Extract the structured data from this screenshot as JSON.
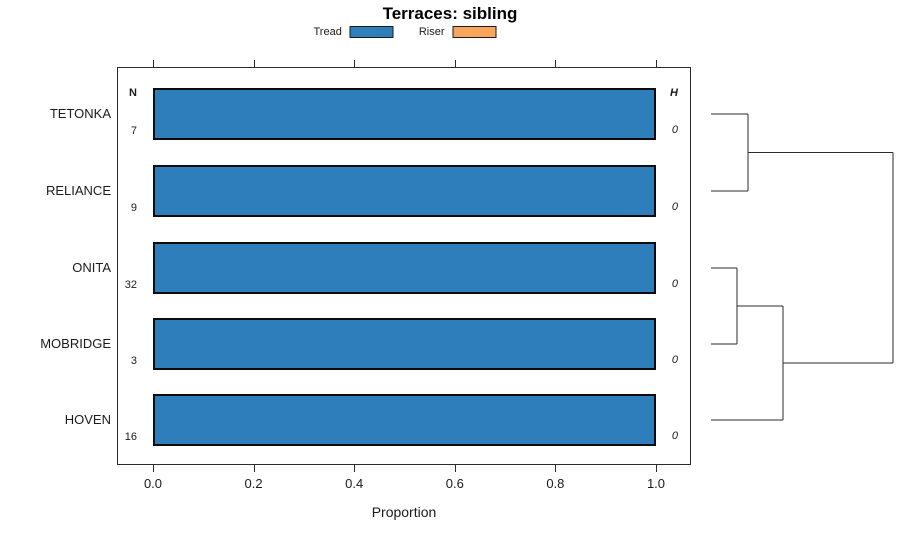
{
  "chart_data": {
    "type": "bar",
    "orientation": "horizontal",
    "title": "Terraces: sibling",
    "xlabel": "Proportion",
    "xlim": [
      0,
      1
    ],
    "x_ticks": [
      "0.0",
      "0.2",
      "0.4",
      "0.6",
      "0.8",
      "1.0"
    ],
    "x_tick_values": [
      0.0,
      0.2,
      0.4,
      0.6,
      0.8,
      1.0
    ],
    "grid": false,
    "legend_position": "top-center",
    "legend": [
      {
        "label": "Tread",
        "color": "#2e7ebb"
      },
      {
        "label": "Riser",
        "color": "#f9a65c"
      }
    ],
    "categories": [
      "TETONKA",
      "RELIANCE",
      "ONITA",
      "MOBRIDGE",
      "HOVEN"
    ],
    "series": [
      {
        "name": "Tread",
        "values": [
          1.0,
          1.0,
          1.0,
          1.0,
          1.0
        ]
      },
      {
        "name": "Riser",
        "values": [
          0,
          0,
          0,
          0,
          0
        ]
      }
    ],
    "n_column": {
      "header": "N",
      "values": [
        "7",
        "9",
        "32",
        "3",
        "16"
      ]
    },
    "h_column": {
      "header": "H",
      "values": [
        "0",
        "0",
        "0",
        "0",
        "0"
      ]
    },
    "dendrogram": {
      "merges": [
        {
          "children": [
            {
              "type": "leaf",
              "index": 0
            },
            {
              "type": "leaf",
              "index": 1
            }
          ]
        },
        {
          "children": [
            {
              "type": "leaf",
              "index": 2
            },
            {
              "type": "leaf",
              "index": 3
            }
          ]
        },
        {
          "children": [
            {
              "type": "merge",
              "index": 1
            },
            {
              "type": "leaf",
              "index": 4
            }
          ]
        },
        {
          "children": [
            {
              "type": "merge",
              "index": 0
            },
            {
              "type": "merge",
              "index": 2
            }
          ]
        }
      ]
    }
  }
}
